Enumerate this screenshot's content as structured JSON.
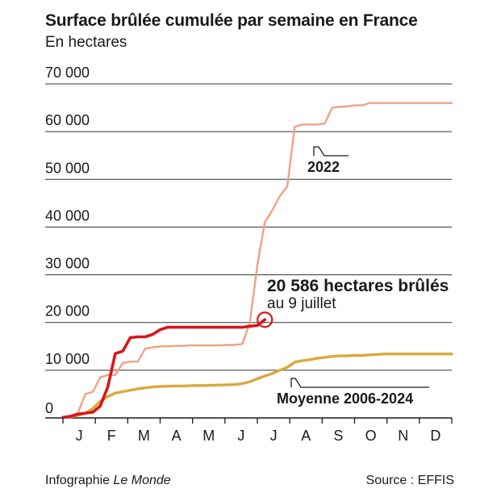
{
  "header": {
    "title": "Surface brûlée cumulée par semaine en France",
    "subtitle": "En hectares"
  },
  "footer": {
    "credit_prefix": "Infographie ",
    "credit_brand": "Le Monde",
    "source": "Source : EFFIS"
  },
  "annotation": {
    "value_text": "20 586 hectares brûlés",
    "date_text": "au 9 juillet"
  },
  "colors": {
    "current_year": "#d7161b",
    "year_2022": "#f0a183",
    "average": "#d9a93c",
    "grid": "#333333",
    "text": "#1a1a1a"
  },
  "chart_data": {
    "type": "line",
    "y_ticks": [
      0,
      10000,
      20000,
      30000,
      40000,
      50000,
      60000,
      70000
    ],
    "y_tick_labels": [
      "0",
      "10 000",
      "20 000",
      "30 000",
      "40 000",
      "50 000",
      "60 000",
      "70 000"
    ],
    "ylim": [
      0,
      70000
    ],
    "x_unit": "week",
    "xlim": [
      1,
      53
    ],
    "months": [
      "J",
      "F",
      "M",
      "A",
      "M",
      "J",
      "J",
      "A",
      "S",
      "O",
      "N",
      "D"
    ],
    "grid": true,
    "series": [
      {
        "name": "2022",
        "color": "#f0a183",
        "x": [
          1,
          2,
          3,
          4,
          5,
          6,
          7,
          8,
          9,
          10,
          11,
          12,
          13,
          14,
          15,
          16,
          17,
          18,
          19,
          20,
          21,
          22,
          23,
          24,
          25,
          26,
          27,
          28,
          29,
          30,
          31,
          32,
          33,
          34,
          35,
          36,
          37,
          38,
          39,
          40,
          41,
          42,
          43,
          44,
          45,
          46,
          47,
          48,
          49,
          50,
          51,
          52,
          53
        ],
        "values": [
          200,
          500,
          1000,
          5000,
          5500,
          8500,
          9000,
          9000,
          11500,
          11800,
          11800,
          14500,
          14800,
          15000,
          15000,
          15100,
          15100,
          15200,
          15200,
          15200,
          15200,
          15200,
          15300,
          15300,
          15500,
          20000,
          32000,
          41000,
          43500,
          46500,
          48500,
          61000,
          61500,
          61500,
          61500,
          61700,
          65000,
          65200,
          65300,
          65500,
          65500,
          66000,
          66000,
          66000,
          66000,
          66000,
          66000,
          66000,
          66000,
          66000,
          66000,
          66000,
          66000
        ]
      },
      {
        "name": "",
        "color": "#d7161b",
        "x": [
          1,
          2,
          3,
          4,
          5,
          6,
          7,
          8,
          9,
          10,
          11,
          12,
          13,
          14,
          15,
          16,
          17,
          18,
          19,
          20,
          21,
          22,
          23,
          24,
          25,
          26,
          27,
          28
        ],
        "values": [
          100,
          300,
          800,
          1000,
          1200,
          2500,
          6500,
          13500,
          14000,
          16800,
          17000,
          17000,
          17500,
          18500,
          19000,
          19000,
          19000,
          19000,
          19000,
          19000,
          19000,
          19000,
          19000,
          19000,
          19000,
          19200,
          19400,
          20586
        ]
      },
      {
        "name": "Moyenne 2006-2024",
        "color": "#d9a93c",
        "x": [
          1,
          2,
          3,
          4,
          5,
          6,
          7,
          8,
          9,
          10,
          11,
          12,
          13,
          14,
          15,
          16,
          17,
          18,
          19,
          20,
          21,
          22,
          23,
          24,
          25,
          26,
          27,
          28,
          29,
          30,
          31,
          32,
          33,
          34,
          35,
          36,
          37,
          38,
          39,
          40,
          41,
          42,
          43,
          44,
          45,
          46,
          47,
          48,
          49,
          50,
          51,
          52,
          53
        ],
        "values": [
          100,
          200,
          500,
          1000,
          2000,
          3500,
          4500,
          5200,
          5500,
          5800,
          6100,
          6300,
          6500,
          6600,
          6650,
          6700,
          6700,
          6750,
          6800,
          6800,
          6850,
          6900,
          6950,
          7000,
          7200,
          7600,
          8200,
          8800,
          9300,
          10000,
          10600,
          11700,
          12000,
          12200,
          12500,
          12700,
          12900,
          13000,
          13000,
          13100,
          13100,
          13200,
          13300,
          13400,
          13400,
          13400,
          13400,
          13400,
          13400,
          13400,
          13400,
          13400,
          13400
        ]
      }
    ],
    "highlight_point": {
      "x": 28,
      "y": 20586
    }
  }
}
